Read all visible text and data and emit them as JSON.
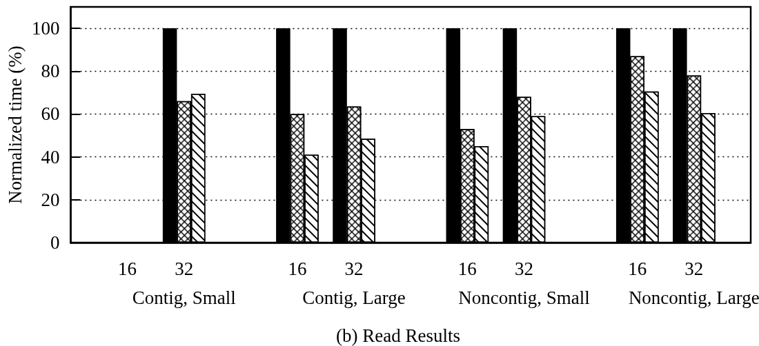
{
  "chart_data": {
    "type": "bar",
    "title": "(b) Read Results",
    "ylabel": "Normalized time (%)",
    "categories": [
      null,
      "16",
      "32",
      null,
      "16",
      "32",
      null,
      "16",
      "32",
      null,
      "16",
      "32",
      null
    ],
    "series": [
      {
        "color": "#000000",
        "values": [
          null,
          null,
          100,
          null,
          100,
          100,
          null,
          100,
          100,
          null,
          100,
          100,
          null
        ]
      },
      {
        "color": "#ffffff",
        "values": [
          null,
          null,
          66,
          null,
          60,
          63.5,
          null,
          53,
          68,
          null,
          87,
          78,
          null
        ]
      },
      {
        "color": "#ffffff",
        "values": [
          null,
          null,
          69.5,
          null,
          41,
          48.5,
          null,
          45,
          59,
          null,
          70.5,
          60.5,
          null
        ]
      }
    ],
    "ylim": [
      0,
      110
    ],
    "yticks": [
      0,
      20,
      40,
      60,
      80,
      100
    ],
    "grid": "y",
    "annotations": [
      "Contig, Small",
      "Contig, Large",
      "Noncontig, Small",
      "Noncontig, Large"
    ]
  }
}
